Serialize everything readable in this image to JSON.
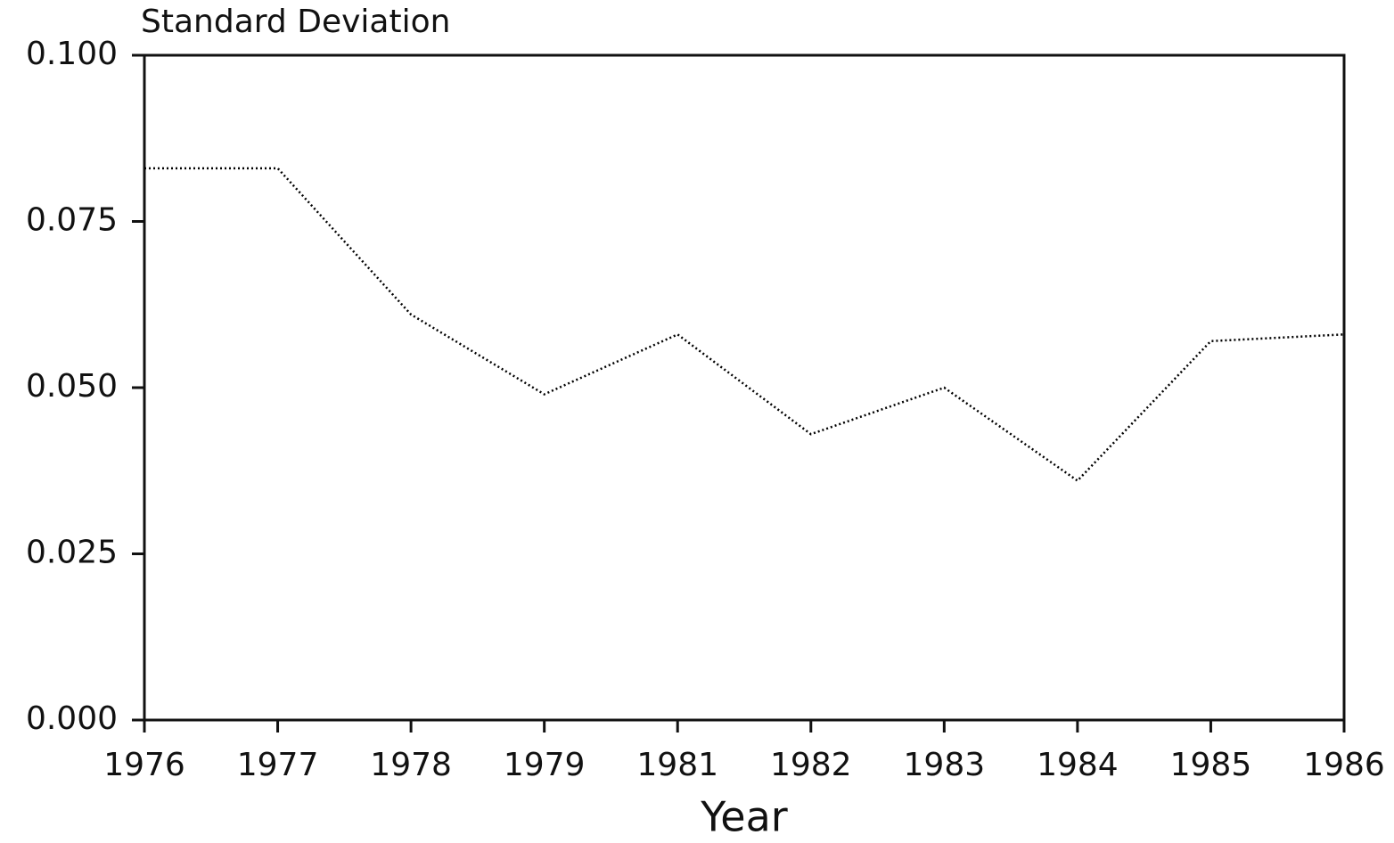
{
  "chart_data": {
    "type": "line",
    "ylabel": "Standard Deviation",
    "xlabel": "Year",
    "categories": [
      "1976",
      "1977",
      "1978",
      "1979",
      "1981",
      "1982",
      "1983",
      "1984",
      "1985",
      "1986"
    ],
    "values": [
      0.083,
      0.083,
      0.061,
      0.049,
      0.058,
      0.043,
      0.05,
      0.036,
      0.057,
      0.058
    ],
    "color": "#000000",
    "ylim": [
      0,
      0.1
    ],
    "yticks": [
      {
        "value": 0,
        "label": "0.000"
      },
      {
        "value": 0.025,
        "label": "0.025"
      },
      {
        "value": 0.05,
        "label": "0.050"
      },
      {
        "value": 0.075,
        "label": "0.075"
      },
      {
        "value": 0.1,
        "label": "0.100"
      }
    ]
  }
}
